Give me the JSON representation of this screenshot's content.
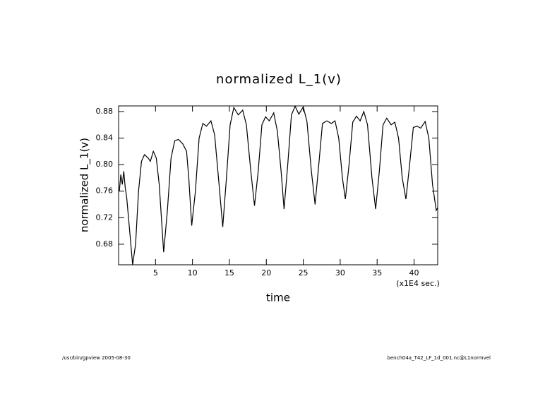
{
  "chart_data": {
    "type": "line",
    "title": "normalized L_1(v)",
    "xlabel": "time",
    "ylabel": "normalized L_1(v)",
    "annotation": "(x1E4 sec.)",
    "x": [
      0.1,
      0.3,
      0.5,
      0.7,
      0.9,
      1.1,
      1.5,
      1.9,
      2.3,
      2.7,
      3.1,
      3.5,
      4.0,
      4.3,
      4.7,
      5.1,
      5.5,
      6.1,
      6.6,
      7.1,
      7.6,
      8.1,
      8.7,
      9.2,
      9.5,
      9.9,
      10.4,
      10.9,
      11.4,
      11.9,
      12.5,
      13.0,
      13.6,
      14.1,
      14.6,
      15.1,
      15.6,
      16.2,
      16.8,
      17.3,
      17.9,
      18.4,
      18.9,
      19.4,
      19.9,
      20.4,
      21.0,
      21.5,
      22.0,
      22.4,
      22.9,
      23.4,
      23.9,
      24.4,
      25.0,
      25.5,
      26.1,
      26.6,
      27.1,
      27.6,
      28.2,
      28.8,
      29.3,
      29.8,
      30.3,
      30.7,
      31.2,
      31.7,
      32.2,
      32.7,
      33.2,
      33.7,
      34.3,
      34.8,
      35.3,
      35.8,
      36.3,
      36.9,
      37.4,
      37.9,
      38.4,
      38.9,
      39.4,
      39.9,
      40.4,
      40.9,
      41.5,
      42.0,
      42.5,
      43.0,
      43.2
    ],
    "series": [
      {
        "color": "#000000",
        "values": [
          0.76,
          0.785,
          0.77,
          0.79,
          0.765,
          0.75,
          0.7,
          0.649,
          0.68,
          0.76,
          0.805,
          0.815,
          0.81,
          0.805,
          0.82,
          0.81,
          0.77,
          0.668,
          0.73,
          0.81,
          0.836,
          0.838,
          0.831,
          0.82,
          0.78,
          0.708,
          0.76,
          0.84,
          0.862,
          0.858,
          0.866,
          0.845,
          0.77,
          0.706,
          0.78,
          0.86,
          0.886,
          0.875,
          0.882,
          0.86,
          0.79,
          0.738,
          0.79,
          0.86,
          0.872,
          0.866,
          0.878,
          0.85,
          0.79,
          0.733,
          0.8,
          0.875,
          0.888,
          0.876,
          0.887,
          0.865,
          0.79,
          0.74,
          0.8,
          0.862,
          0.866,
          0.862,
          0.866,
          0.84,
          0.78,
          0.748,
          0.8,
          0.864,
          0.873,
          0.866,
          0.88,
          0.86,
          0.78,
          0.733,
          0.79,
          0.86,
          0.87,
          0.86,
          0.864,
          0.84,
          0.78,
          0.748,
          0.8,
          0.856,
          0.858,
          0.855,
          0.865,
          0.84,
          0.77,
          0.731,
          0.735
        ]
      }
    ],
    "xlim": [
      0,
      43.2
    ],
    "ylim": [
      0.649,
      0.8885
    ],
    "xticks": [
      5,
      10,
      15,
      20,
      25,
      30,
      35,
      40
    ],
    "yticks": [
      0.68,
      0.72,
      0.76,
      {
        "value": 0.8,
        "label": "0.80"
      },
      0.84,
      0.88
    ]
  },
  "footer": {
    "left": "/usr/bin/gpview  2005-08-30",
    "right": "bench04a_T42_LF_1d_001.nc@L1normvel"
  }
}
